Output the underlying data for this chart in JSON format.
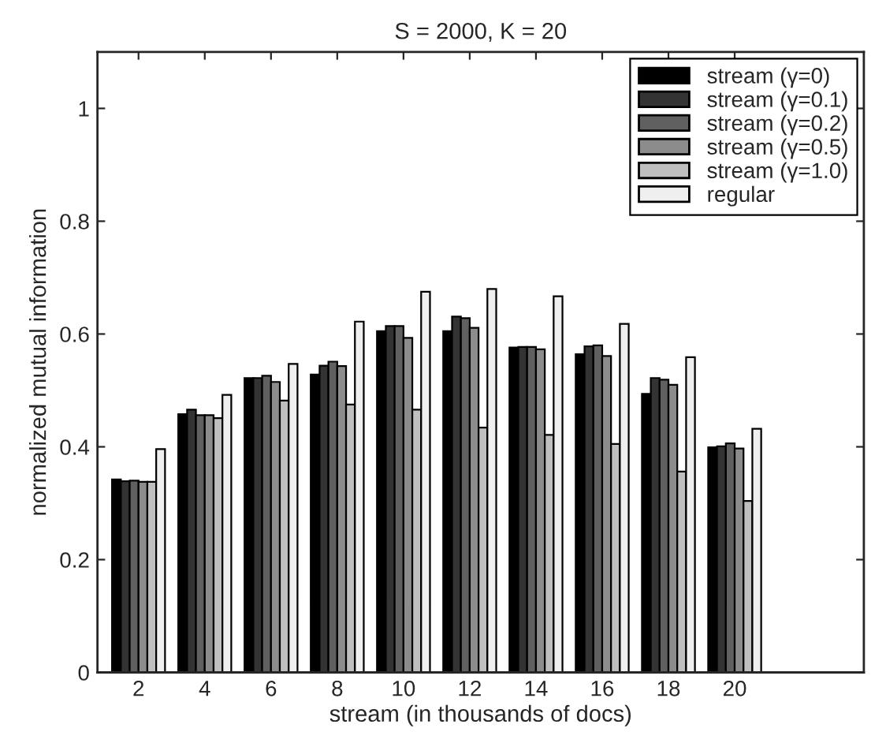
{
  "chart_data": {
    "type": "bar",
    "title": "S = 2000, K = 20",
    "xlabel": "stream (in thousands of docs)",
    "ylabel": "normalized mutual information",
    "categories": [
      "2",
      "4",
      "6",
      "8",
      "10",
      "12",
      "14",
      "16",
      "18",
      "20"
    ],
    "series": [
      {
        "name": "stream (γ=0)",
        "color": "#000000",
        "values": [
          0.342,
          0.458,
          0.522,
          0.528,
          0.605,
          0.605,
          0.576,
          0.564,
          0.494,
          0.399
        ]
      },
      {
        "name": "stream (γ=0.1)",
        "color": "#333333",
        "values": [
          0.339,
          0.466,
          0.522,
          0.544,
          0.614,
          0.631,
          0.577,
          0.578,
          0.522,
          0.401
        ]
      },
      {
        "name": "stream (γ=0.2)",
        "color": "#606060",
        "values": [
          0.34,
          0.456,
          0.526,
          0.551,
          0.614,
          0.628,
          0.577,
          0.58,
          0.519,
          0.406
        ]
      },
      {
        "name": "stream (γ=0.5)",
        "color": "#8c8c8c",
        "values": [
          0.338,
          0.456,
          0.515,
          0.543,
          0.593,
          0.611,
          0.573,
          0.561,
          0.51,
          0.397
        ]
      },
      {
        "name": "stream (γ=1.0)",
        "color": "#bfbfbf",
        "values": [
          0.338,
          0.451,
          0.482,
          0.475,
          0.466,
          0.434,
          0.421,
          0.405,
          0.356,
          0.304
        ]
      },
      {
        "name": "regular",
        "color": "#efefef",
        "values": [
          0.396,
          0.492,
          0.547,
          0.622,
          0.675,
          0.68,
          0.667,
          0.618,
          0.559,
          0.432
        ]
      }
    ],
    "ylim": [
      0,
      1.1
    ],
    "yticks": [
      0,
      0.2,
      0.4,
      0.6,
      0.8,
      1
    ],
    "legend": "top right"
  }
}
